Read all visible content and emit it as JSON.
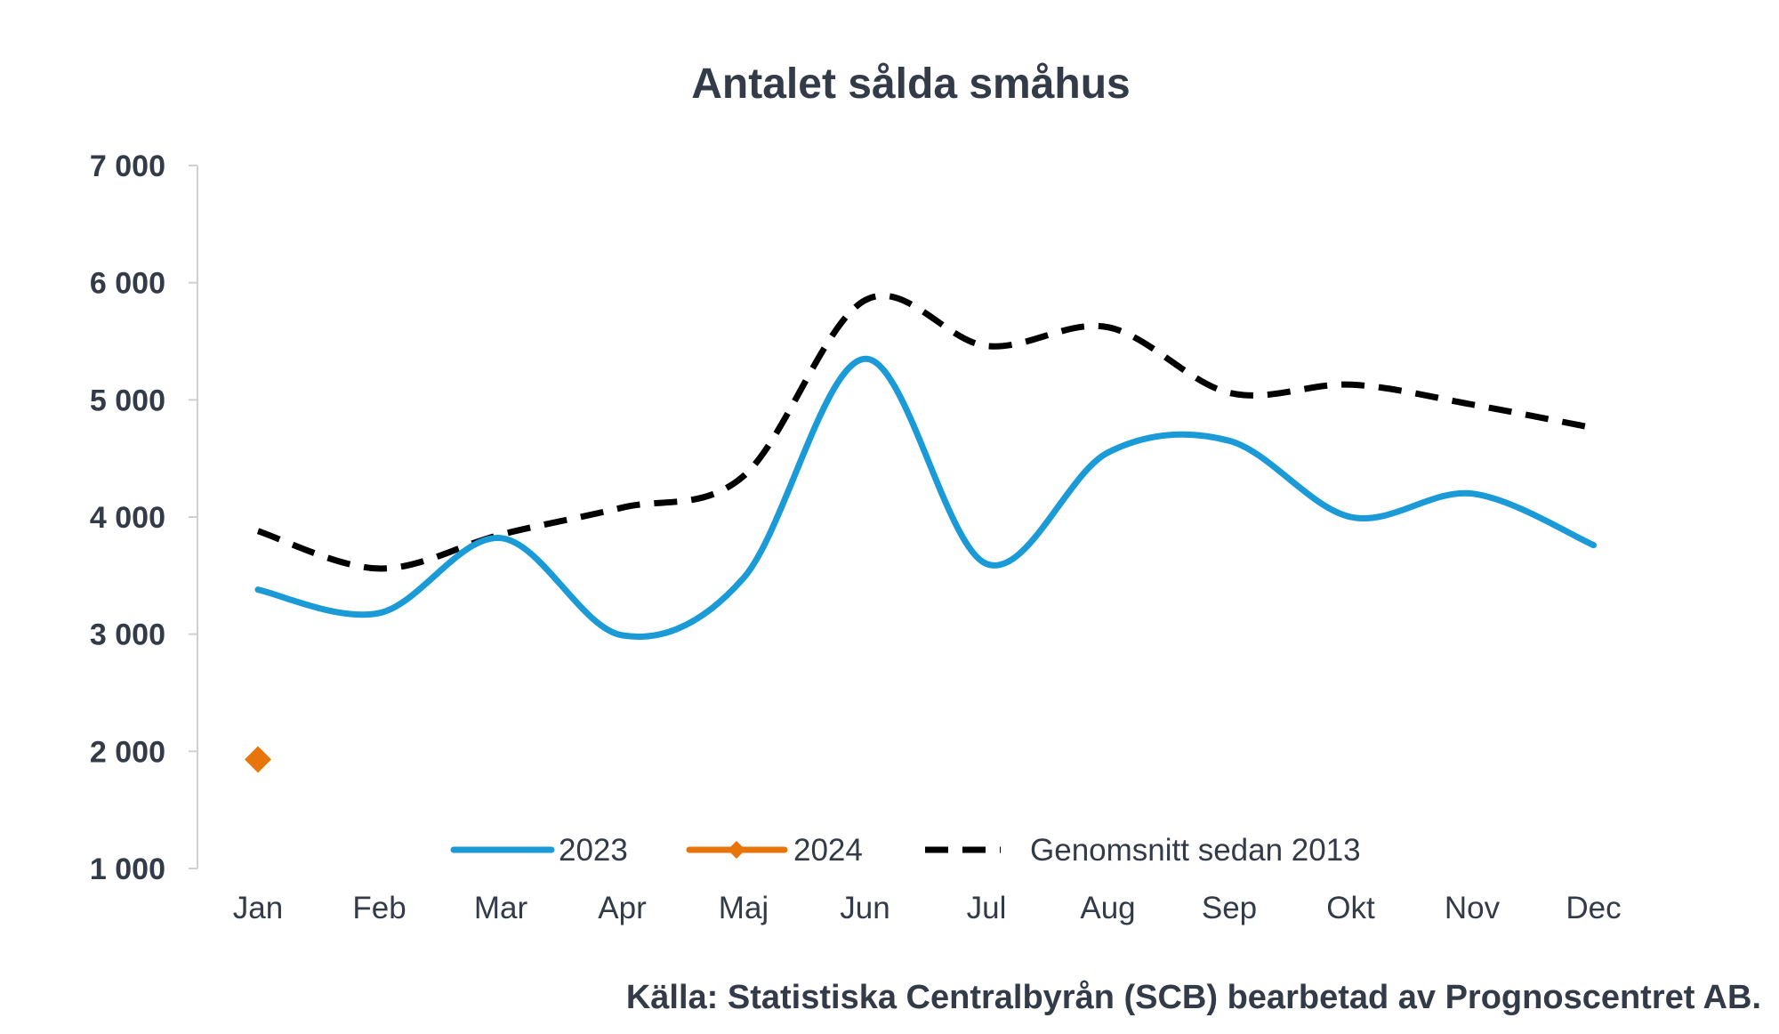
{
  "chart_data": {
    "type": "line",
    "title": "Antalet sålda småhus",
    "xlabel": "",
    "ylabel": "",
    "categories": [
      "Jan",
      "Feb",
      "Mar",
      "Apr",
      "Maj",
      "Jun",
      "Jul",
      "Aug",
      "Sep",
      "Okt",
      "Nov",
      "Dec"
    ],
    "ylim": [
      1000,
      7000
    ],
    "yticks": [
      1000,
      2000,
      3000,
      4000,
      5000,
      6000,
      7000
    ],
    "ytick_labels": [
      "1 000",
      "2 000",
      "3 000",
      "4 000",
      "5 000",
      "6 000",
      "7 000"
    ],
    "grid": false,
    "legend_position": "bottom-center",
    "series": [
      {
        "name": "2023",
        "style": "solid",
        "color": "#1a9ad6",
        "values": [
          3380,
          3180,
          3820,
          2990,
          3480,
          5350,
          3600,
          4550,
          4650,
          4000,
          4200,
          3760
        ]
      },
      {
        "name": "2024",
        "style": "solid-marker",
        "marker": "diamond",
        "color": "#e8740c",
        "values": [
          1930,
          null,
          null,
          null,
          null,
          null,
          null,
          null,
          null,
          null,
          null,
          null
        ]
      },
      {
        "name": "Genomsnitt sedan 2013",
        "style": "dashed",
        "color": "#000000",
        "values": [
          3880,
          3560,
          3850,
          4080,
          4350,
          5850,
          5460,
          5620,
          5060,
          5130,
          4960,
          4760
        ]
      }
    ],
    "source": "Källa: Statistiska Centralbyrån (SCB) bearbetad av Prognoscentret AB."
  }
}
